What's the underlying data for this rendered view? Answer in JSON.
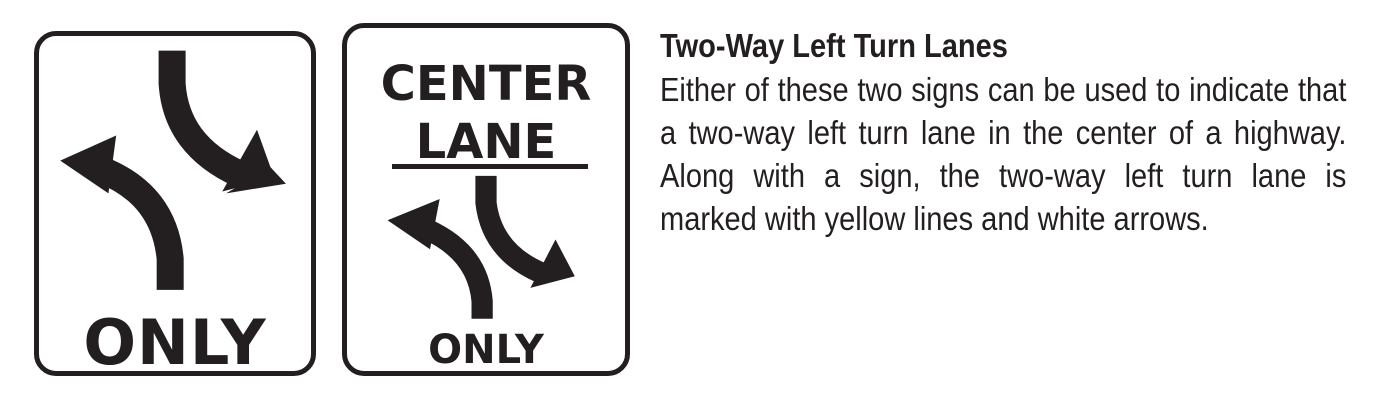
{
  "signs": [
    {
      "id": "two-way-left-turn-only",
      "bottom_text": "ONLY"
    },
    {
      "id": "center-lane-only",
      "top_text_line1": "CENTER",
      "top_text_line2": "LANE",
      "bottom_text": "ONLY"
    }
  ],
  "icons": {
    "sign1_arrows": "two-way-left-turn-arrows-icon",
    "sign2_arrows": "two-way-left-turn-arrows-icon"
  },
  "colors": {
    "ink": "#231f20",
    "background": "#ffffff"
  },
  "description": {
    "heading": "Two-Way Left Turn Lanes",
    "body": "Either of these two signs can be used to indicate that a two-way left turn lane in the center of a highway. Along with a sign, the two-way left turn lane is marked with yellow lines and white arrows."
  }
}
